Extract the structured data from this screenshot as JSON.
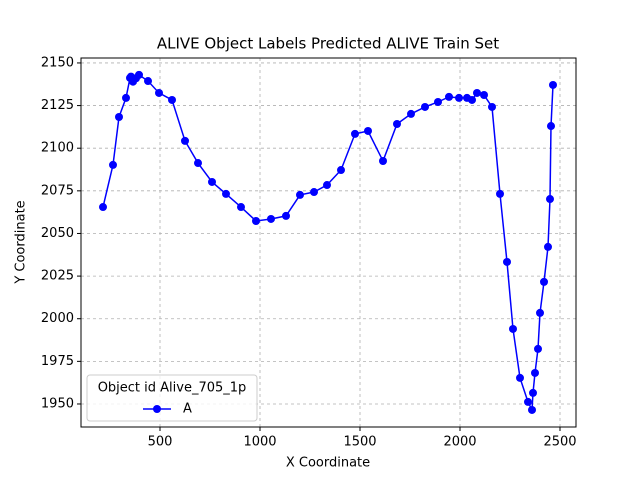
{
  "chart_data": {
    "type": "line",
    "title": "ALIVE Object Labels Predicted ALIVE Train Set",
    "x_label": "X Coordinate",
    "y_label": "Y Coordinate",
    "legend_title": "Object id Alive_705_1p",
    "legend_position": "lower left",
    "grid": true,
    "x": [
      215,
      265,
      295,
      330,
      350,
      355,
      365,
      380,
      395,
      440,
      495,
      560,
      625,
      690,
      760,
      830,
      905,
      980,
      1055,
      1130,
      1200,
      1270,
      1335,
      1405,
      1475,
      1540,
      1615,
      1685,
      1755,
      1825,
      1890,
      1945,
      1995,
      2035,
      2060,
      2085,
      2120,
      2160,
      2200,
      2235,
      2265,
      2300,
      2340,
      2360,
      2365,
      2375,
      2390,
      2400,
      2420,
      2440,
      2450,
      2455,
      2465
    ],
    "series": [
      {
        "name": "A",
        "color": "#0000ff",
        "values": [
          2065.5,
          2090.2,
          2118.3,
          2129.5,
          2141.2,
          2142,
          2139,
          2141,
          2143,
          2139.4,
          2132.4,
          2128.3,
          2104.3,
          2091.3,
          2080.2,
          2073.2,
          2065.5,
          2057.3,
          2058.5,
          2060.3,
          2072.6,
          2074.3,
          2078.4,
          2087.2,
          2108.4,
          2110.1,
          2092.5,
          2114.2,
          2120.1,
          2124.2,
          2127.1,
          2130.1,
          2129.5,
          2129.5,
          2128.3,
          2132.4,
          2131.2,
          2124.2,
          2073.2,
          2033.3,
          1994.0,
          1965.3,
          1951.2,
          1946.5,
          1956.5,
          1968.2,
          1982.3,
          2003.4,
          2021.6,
          2042.1,
          2070.2,
          2113.0,
          2137.1
        ]
      }
    ],
    "xlim": [
      105,
      2580
    ],
    "xticks": [
      500,
      1000,
      1500,
      2000,
      2500
    ],
    "ylim": [
      1936.5,
      2152.9
    ],
    "yticks": [
      1950,
      1975,
      2000,
      2025,
      2050,
      2075,
      2100,
      2125,
      2150
    ]
  }
}
